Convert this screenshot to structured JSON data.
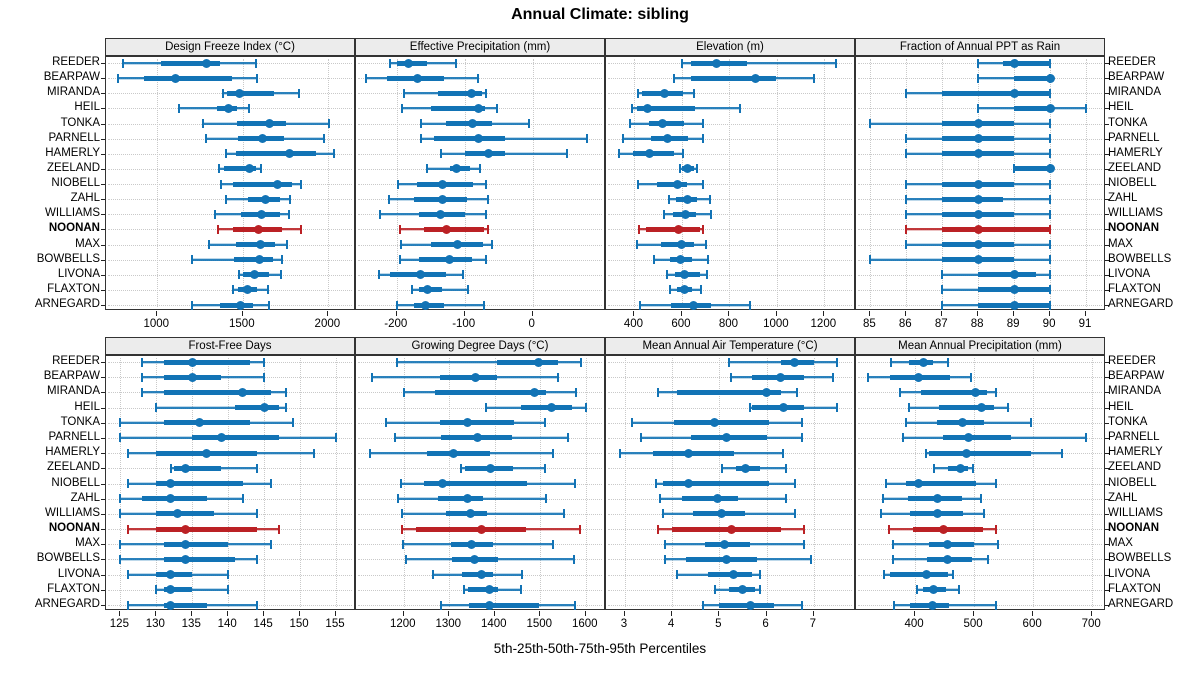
{
  "title": "Annual Climate: sibling",
  "caption": "5th-25th-50th-75th-95th Percentiles",
  "percentile_labels": [
    "5th",
    "25th",
    "50th",
    "75th",
    "95th"
  ],
  "stations": [
    "REEDER",
    "BEARPAW",
    "MIRANDA",
    "HEIL",
    "TONKA",
    "PARNELL",
    "HAMERLY",
    "ZEELAND",
    "NIOBELL",
    "ZAHL",
    "WILLIAMS",
    "NOONAN",
    "MAX",
    "BOWBELLS",
    "LIVONA",
    "FLAXTON",
    "ARNEGARD"
  ],
  "highlight_station": "NOONAN",
  "colors": {
    "series": "#1273b5",
    "highlight": "#bb2125",
    "strip_bg": "#ececec",
    "panel_border": "#333333",
    "grid": "#c9c9c9",
    "text": "#000000"
  },
  "layout_hints": {
    "rows": 2,
    "cols": 4,
    "grid": "dotted",
    "station_labels_left": true,
    "station_labels_right": true,
    "legend": "none"
  },
  "chart_data": [
    {
      "type": "dotplot",
      "title": "Design Freeze Index (°C)",
      "row": 0,
      "col": 0,
      "xlim": [
        700,
        2150
      ],
      "ticks": [
        1000,
        1500,
        2000
      ],
      "values": [
        [
          800,
          1020,
          1290,
          1365,
          1575
        ],
        [
          770,
          925,
          1105,
          1435,
          1585
        ],
        [
          1385,
          1405,
          1480,
          1685,
          1830
        ],
        [
          1125,
          1350,
          1415,
          1465,
          1535
        ],
        [
          1270,
          1465,
          1655,
          1755,
          2005
        ],
        [
          1285,
          1470,
          1615,
          1740,
          1975
        ],
        [
          1400,
          1460,
          1775,
          1925,
          2035
        ],
        [
          1360,
          1390,
          1540,
          1580,
          1605
        ],
        [
          1375,
          1445,
          1700,
          1790,
          1840
        ],
        [
          1400,
          1530,
          1630,
          1720,
          1775
        ],
        [
          1335,
          1490,
          1610,
          1720,
          1770
        ],
        [
          1355,
          1445,
          1590,
          1730,
          1840
        ],
        [
          1300,
          1460,
          1605,
          1690,
          1760
        ],
        [
          1205,
          1450,
          1600,
          1675,
          1730
        ],
        [
          1475,
          1500,
          1570,
          1655,
          1725
        ],
        [
          1445,
          1470,
          1525,
          1585,
          1645
        ],
        [
          1200,
          1365,
          1487,
          1558,
          1655
        ]
      ]
    },
    {
      "type": "dotplot",
      "title": "Effective Precipitation (mm)",
      "row": 0,
      "col": 1,
      "xlim": [
        -260,
        105
      ],
      "ticks": [
        -200,
        -100,
        0
      ],
      "values": [
        [
          -210,
          -200,
          -182,
          -155,
          -113
        ],
        [
          -245,
          -215,
          -170,
          -130,
          -80
        ],
        [
          -190,
          -140,
          -90,
          -75,
          -68
        ],
        [
          -192,
          -150,
          -80,
          -70,
          -52
        ],
        [
          -165,
          -127,
          -88,
          -60,
          -5
        ],
        [
          -165,
          -145,
          -80,
          -40,
          80
        ],
        [
          -135,
          -100,
          -65,
          -40,
          50
        ],
        [
          -155,
          -122,
          -112,
          -92,
          -78
        ],
        [
          -198,
          -170,
          -133,
          -88,
          -68
        ],
        [
          -212,
          -175,
          -132,
          -97,
          -66
        ],
        [
          -225,
          -168,
          -135,
          -100,
          -68
        ],
        [
          -195,
          -160,
          -127,
          -72,
          -66
        ],
        [
          -194,
          -150,
          -110,
          -73,
          -60
        ],
        [
          -195,
          -167,
          -122,
          -90,
          -68
        ],
        [
          -226,
          -210,
          -165,
          -128,
          -102
        ],
        [
          -178,
          -168,
          -155,
          -133,
          -95
        ],
        [
          -200,
          -175,
          -158,
          -130,
          -72
        ]
      ]
    },
    {
      "type": "dotplot",
      "title": "Elevation (m)",
      "row": 0,
      "col": 2,
      "xlim": [
        280,
        1325
      ],
      "ticks": [
        400,
        600,
        800,
        1000,
        1200
      ],
      "values": [
        [
          600,
          640,
          745,
          875,
          1250
        ],
        [
          565,
          640,
          910,
          995,
          1155
        ],
        [
          415,
          430,
          525,
          605,
          650
        ],
        [
          390,
          410,
          455,
          655,
          845
        ],
        [
          380,
          460,
          520,
          610,
          690
        ],
        [
          350,
          470,
          540,
          625,
          690
        ],
        [
          335,
          395,
          465,
          565,
          605
        ],
        [
          590,
          600,
          625,
          650,
          665
        ],
        [
          415,
          495,
          580,
          620,
          690
        ],
        [
          545,
          577,
          623,
          665,
          720
        ],
        [
          525,
          563,
          615,
          660,
          723
        ],
        [
          420,
          450,
          585,
          678,
          690
        ],
        [
          410,
          512,
          600,
          650,
          703
        ],
        [
          484,
          550,
          595,
          643,
          710
        ],
        [
          535,
          570,
          612,
          675,
          707
        ],
        [
          550,
          581,
          609,
          643,
          679
        ],
        [
          424,
          553,
          647,
          723,
          888
        ]
      ]
    },
    {
      "type": "dotplot",
      "title": "Fraction of Annual PPT as Rain",
      "row": 0,
      "col": 3,
      "xlim": [
        84.6,
        91.5
      ],
      "ticks": [
        85,
        86,
        87,
        88,
        89,
        90,
        91
      ],
      "values": [
        [
          88,
          88.7,
          89,
          90,
          90
        ],
        [
          88,
          89,
          90,
          90,
          90
        ],
        [
          86,
          87,
          89,
          90,
          90
        ],
        [
          88,
          89,
          90,
          90,
          91
        ],
        [
          85,
          87,
          88,
          89,
          90
        ],
        [
          86,
          87,
          88,
          89,
          90
        ],
        [
          86,
          87,
          88,
          89,
          90
        ],
        [
          89,
          89,
          90,
          90,
          90
        ],
        [
          86,
          87,
          88,
          89,
          90
        ],
        [
          86,
          87,
          88,
          88.7,
          90
        ],
        [
          86,
          87,
          88,
          89,
          90
        ],
        [
          86,
          87,
          88,
          90,
          90
        ],
        [
          86,
          87,
          88,
          89,
          90
        ],
        [
          85,
          87,
          88,
          89,
          90
        ],
        [
          87,
          88,
          89,
          89.6,
          90
        ],
        [
          87,
          88,
          89,
          90,
          90
        ],
        [
          87,
          88,
          89,
          90,
          90
        ]
      ]
    },
    {
      "type": "dotplot",
      "title": "Frost-Free Days",
      "row": 1,
      "col": 0,
      "xlim": [
        123,
        157.5
      ],
      "ticks": [
        125,
        130,
        135,
        140,
        145,
        150,
        155
      ],
      "values": [
        [
          128,
          131,
          135,
          143,
          145
        ],
        [
          128,
          131,
          135,
          139,
          145
        ],
        [
          128,
          131,
          142,
          146,
          148
        ],
        [
          130,
          141,
          145,
          147,
          148
        ],
        [
          125,
          131,
          136,
          143,
          149
        ],
        [
          125,
          135,
          139,
          147,
          155
        ],
        [
          126,
          130,
          137,
          144,
          152
        ],
        [
          132,
          132.5,
          134,
          139,
          144
        ],
        [
          126,
          130,
          132,
          142,
          146
        ],
        [
          125,
          128,
          132,
          137,
          142
        ],
        [
          125,
          130,
          133,
          138,
          144
        ],
        [
          126,
          130,
          134,
          144,
          147
        ],
        [
          125,
          131,
          134,
          140,
          146
        ],
        [
          125,
          131,
          134,
          141,
          144
        ],
        [
          126,
          130,
          132,
          135,
          140
        ],
        [
          130,
          131,
          132,
          135,
          140
        ],
        [
          126,
          131,
          132,
          137,
          144
        ]
      ]
    },
    {
      "type": "dotplot",
      "title": "Growing Degree Days (°C)",
      "row": 1,
      "col": 1,
      "xlim": [
        1095,
        1640
      ],
      "ticks": [
        1200,
        1300,
        1400,
        1500,
        1600
      ],
      "values": [
        [
          1185,
          1405,
          1495,
          1540,
          1590
        ],
        [
          1130,
          1280,
          1358,
          1405,
          1540
        ],
        [
          1200,
          1268,
          1487,
          1513,
          1578
        ],
        [
          1380,
          1458,
          1525,
          1570,
          1600
        ],
        [
          1160,
          1280,
          1340,
          1442,
          1510
        ],
        [
          1180,
          1282,
          1362,
          1438,
          1560
        ],
        [
          1125,
          1250,
          1310,
          1390,
          1527
        ],
        [
          1325,
          1335,
          1390,
          1440,
          1510
        ],
        [
          1193,
          1244,
          1285,
          1470,
          1577
        ],
        [
          1188,
          1275,
          1340,
          1375,
          1513
        ],
        [
          1195,
          1292,
          1346,
          1382,
          1552
        ],
        [
          1196,
          1227,
          1370,
          1468,
          1588
        ],
        [
          1198,
          1304,
          1349,
          1395,
          1527
        ],
        [
          1204,
          1306,
          1355,
          1407,
          1573
        ],
        [
          1265,
          1329,
          1370,
          1396,
          1460
        ],
        [
          1333,
          1342,
          1388,
          1407,
          1457
        ],
        [
          1282,
          1343,
          1388,
          1498,
          1576
        ]
      ]
    },
    {
      "type": "dotplot",
      "title": "Mean Annual Air Temperature (°C)",
      "row": 1,
      "col": 2,
      "xlim": [
        2.6,
        7.85
      ],
      "ticks": [
        3,
        4,
        5,
        6,
        7
      ],
      "values": [
        [
          5.2,
          6.3,
          6.6,
          7.0,
          7.5
        ],
        [
          5.25,
          5.7,
          6.3,
          6.8,
          7.4
        ],
        [
          3.7,
          4.1,
          6.0,
          6.3,
          6.65
        ],
        [
          5.65,
          5.7,
          6.35,
          6.8,
          7.5
        ],
        [
          3.15,
          4.05,
          4.9,
          6.05,
          6.75
        ],
        [
          3.35,
          4.4,
          5.15,
          6.0,
          6.75
        ],
        [
          2.9,
          3.6,
          4.35,
          5.3,
          6.35
        ],
        [
          5.05,
          5.35,
          5.55,
          5.85,
          6.4
        ],
        [
          3.65,
          3.8,
          4.35,
          6.05,
          6.6
        ],
        [
          3.75,
          4.2,
          4.95,
          5.4,
          6.4
        ],
        [
          3.8,
          4.45,
          5.05,
          5.55,
          6.6
        ],
        [
          3.7,
          4.0,
          5.25,
          6.3,
          6.8
        ],
        [
          3.85,
          4.7,
          5.1,
          5.65,
          6.8
        ],
        [
          3.85,
          4.3,
          5.15,
          5.8,
          6.95
        ],
        [
          4.1,
          4.75,
          5.3,
          5.7,
          5.85
        ],
        [
          4.9,
          5.2,
          5.5,
          5.75,
          5.85
        ],
        [
          4.65,
          5.0,
          5.65,
          6.15,
          6.75
        ]
      ]
    },
    {
      "type": "dotplot",
      "title": "Mean Annual Precipitation (mm)",
      "row": 1,
      "col": 3,
      "xlim": [
        300,
        720
      ],
      "ticks": [
        400,
        500,
        600,
        700
      ],
      "values": [
        [
          360,
          390,
          415,
          430,
          455
        ],
        [
          320,
          358,
          405,
          460,
          495
        ],
        [
          375,
          410,
          502,
          522,
          537
        ],
        [
          390,
          440,
          513,
          534,
          557
        ],
        [
          385,
          437,
          480,
          517,
          596
        ],
        [
          380,
          448,
          490,
          562,
          690
        ],
        [
          418,
          424,
          487,
          597,
          649
        ],
        [
          432,
          455,
          477,
          490,
          498
        ],
        [
          351,
          384,
          406,
          504,
          537
        ],
        [
          345,
          388,
          438,
          480,
          511
        ],
        [
          343,
          392,
          438,
          481,
          517
        ],
        [
          356,
          396,
          449,
          515,
          537
        ],
        [
          362,
          424,
          455,
          500,
          541
        ],
        [
          362,
          421,
          455,
          496,
          524
        ],
        [
          347,
          358,
          420,
          455,
          465
        ],
        [
          403,
          414,
          432,
          453,
          474
        ],
        [
          365,
          392,
          429,
          457,
          537
        ]
      ]
    }
  ]
}
